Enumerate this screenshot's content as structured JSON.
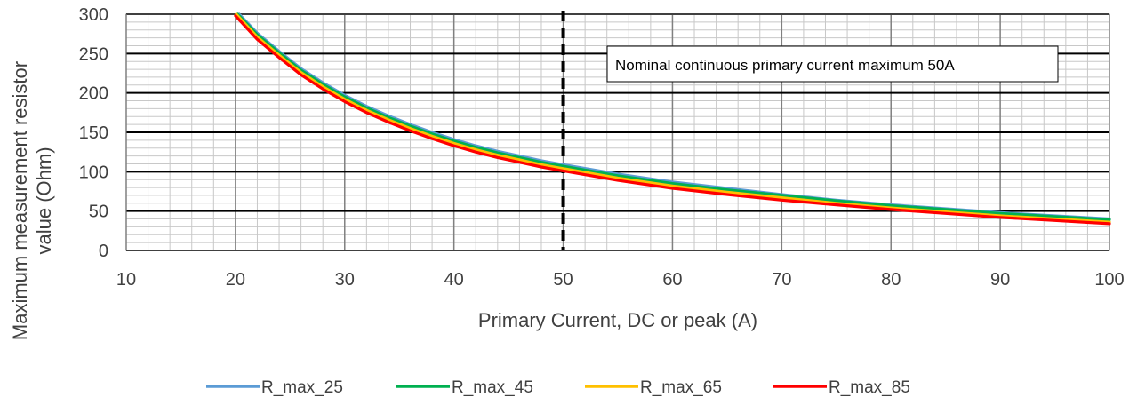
{
  "chart_data": {
    "type": "line",
    "title": "",
    "xlabel": "Primary Current, DC or peak (A)",
    "ylabel_line1": "Maximum measurement resistor",
    "ylabel_line2": "value (Ohm)",
    "xlim": [
      10,
      100
    ],
    "ylim": [
      0,
      300
    ],
    "x_ticks": [
      10,
      20,
      30,
      40,
      50,
      60,
      70,
      80,
      90,
      100
    ],
    "y_ticks": [
      0,
      50,
      100,
      150,
      200,
      250,
      300
    ],
    "grid": true,
    "legend_position": "bottom",
    "annotation": {
      "text": "Nominal continuous primary current maximum 50A",
      "x_marker": 50
    },
    "x": [
      20,
      22,
      24,
      26,
      28,
      30,
      32,
      34,
      36,
      38,
      40,
      42,
      44,
      46,
      48,
      50,
      55,
      60,
      65,
      70,
      75,
      80,
      85,
      90,
      95,
      100
    ],
    "series": [
      {
        "name": "R_max_25",
        "color": "#5B9BD5",
        "values": [
          305,
          276,
          253,
          231,
          213,
          197,
          183,
          171,
          160,
          150,
          141,
          133,
          126,
          120,
          114,
          109,
          97,
          87,
          79,
          71,
          64,
          58,
          53,
          48,
          44,
          40
        ]
      },
      {
        "name": "R_max_45",
        "color": "#00B050",
        "values": [
          303,
          274,
          251,
          229,
          211,
          195,
          181,
          169,
          158,
          148,
          139,
          131,
          124,
          118,
          112,
          107,
          95,
          85,
          77,
          70,
          63,
          57,
          52,
          47,
          43,
          39
        ]
      },
      {
        "name": "R_max_65",
        "color": "#FFC000",
        "values": [
          301,
          271,
          248,
          226,
          208,
          192,
          178,
          166,
          155,
          145,
          136,
          128,
          121,
          115,
          109,
          104,
          92,
          82,
          74,
          67,
          60,
          54,
          49,
          44,
          40,
          36
        ]
      },
      {
        "name": "R_max_85",
        "color": "#FF0000",
        "values": [
          298,
          268,
          245,
          223,
          205,
          189,
          175,
          163,
          152,
          142,
          133,
          125,
          118,
          112,
          106,
          101,
          89,
          79,
          71,
          64,
          58,
          52,
          47,
          42,
          38,
          34
        ]
      }
    ]
  }
}
